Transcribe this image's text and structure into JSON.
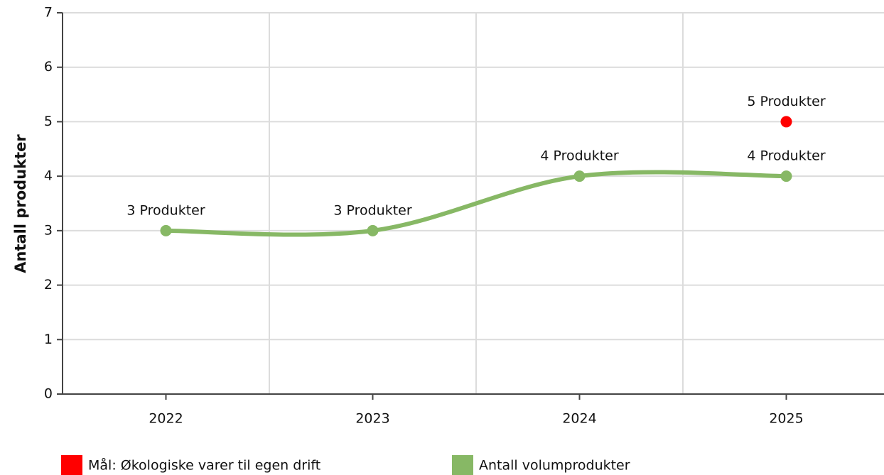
{
  "chart_data": {
    "type": "line",
    "y_label": "Antall produkter",
    "categories": [
      "2022",
      "2023",
      "2024",
      "2025"
    ],
    "series": [
      {
        "name": "Mål: Økologiske varer til egen drift",
        "color": "#ff0000",
        "values": [
          null,
          null,
          null,
          5
        ],
        "value_labels": [
          null,
          null,
          null,
          "5 Produkter"
        ],
        "line": false
      },
      {
        "name": "Antall volumprodukter",
        "color": "#87b865",
        "values": [
          3,
          3,
          4,
          4
        ],
        "value_labels": [
          "3 Produkter",
          "3 Produkter",
          "4 Produkter",
          "4 Produkter"
        ],
        "line": true
      }
    ],
    "ylim": [
      0,
      7
    ],
    "yticks": [
      0,
      1,
      2,
      3,
      4,
      5,
      6,
      7
    ],
    "grid": true,
    "legend": "bottom"
  }
}
